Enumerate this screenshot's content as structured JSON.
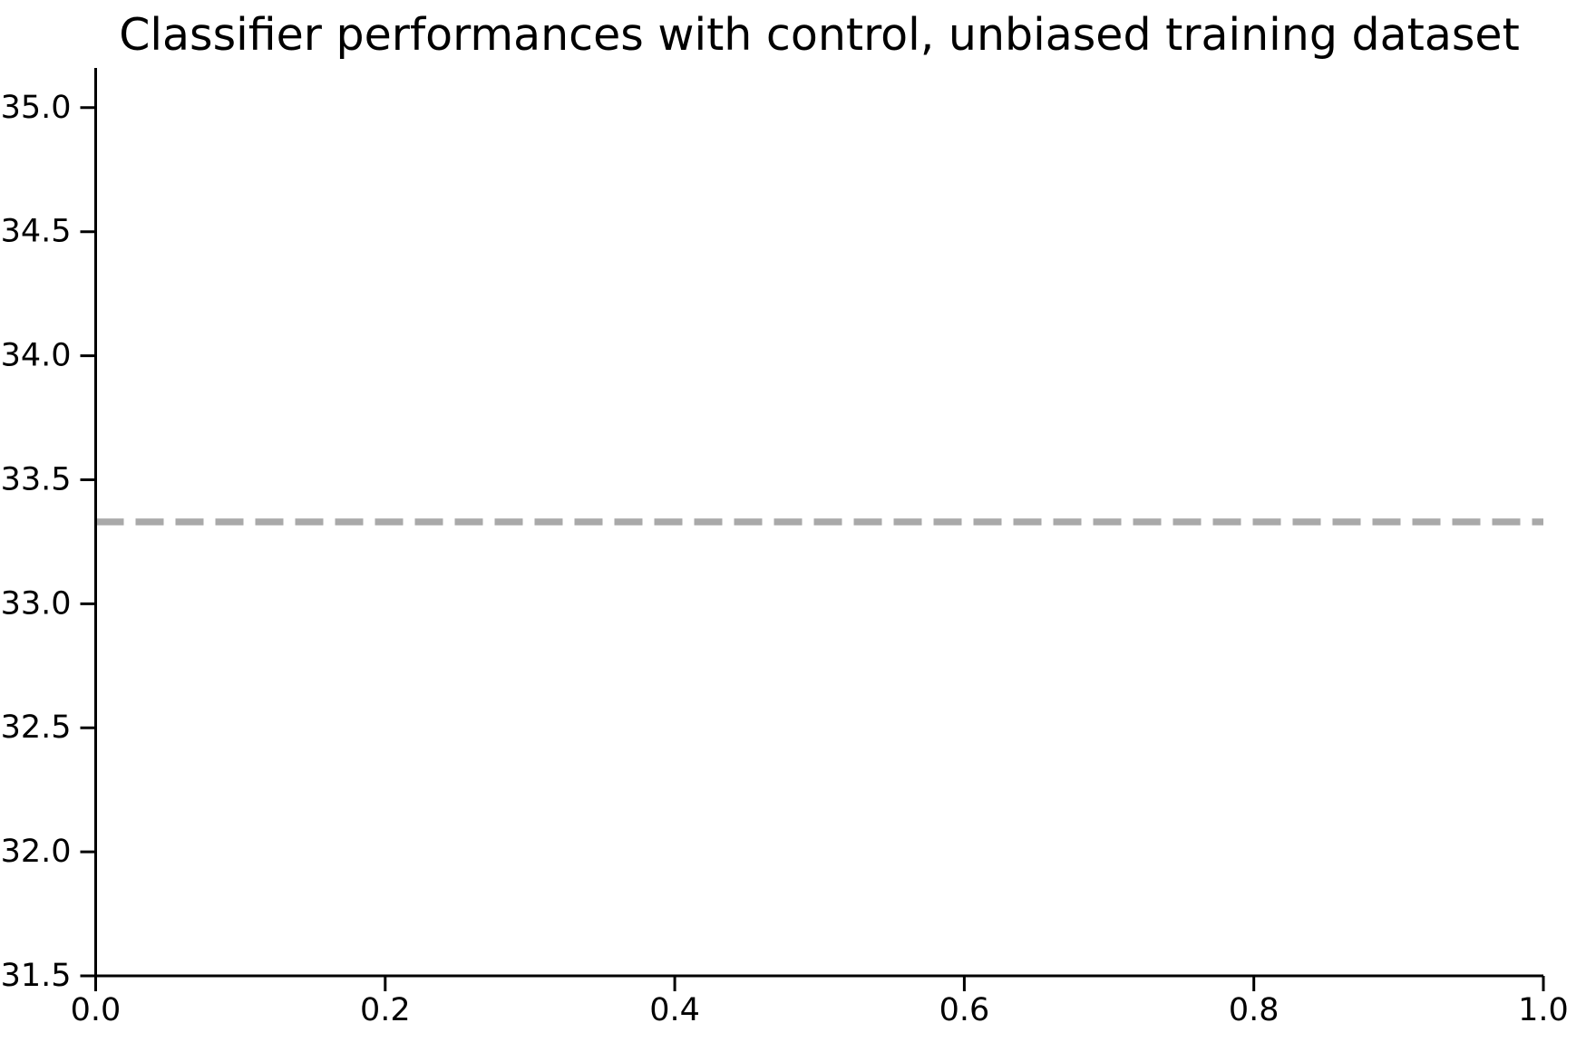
{
  "chart_data": {
    "type": "line",
    "title": "Classifier performances with control, unbiased training dataset",
    "xlabel": "",
    "ylabel": "",
    "xlim": [
      0.0,
      1.0
    ],
    "ylim": [
      31.5,
      35.16
    ],
    "x_ticks": [
      {
        "value": 0.0,
        "label": "0.0"
      },
      {
        "value": 0.2,
        "label": "0.2"
      },
      {
        "value": 0.4,
        "label": "0.4"
      },
      {
        "value": 0.6,
        "label": "0.6"
      },
      {
        "value": 0.8,
        "label": "0.8"
      },
      {
        "value": 1.0,
        "label": "1.0"
      }
    ],
    "y_ticks": [
      {
        "value": 31.5,
        "label": "31.5"
      },
      {
        "value": 32.0,
        "label": "32.0"
      },
      {
        "value": 32.5,
        "label": "32.5"
      },
      {
        "value": 33.0,
        "label": "33.0"
      },
      {
        "value": 33.5,
        "label": "33.5"
      },
      {
        "value": 34.0,
        "label": "34.0"
      },
      {
        "value": 34.5,
        "label": "34.5"
      },
      {
        "value": 35.0,
        "label": "35.0"
      }
    ],
    "grid": false,
    "legend": "none",
    "background_color": "#ffffff",
    "axis_color": "#000000",
    "series": [
      {
        "name": "horizontal-dashed-line",
        "kind": "hline",
        "y": 33.33,
        "x_start": 0.0,
        "x_end": 1.0,
        "color": "#a9a9a9",
        "linestyle": "dashed"
      }
    ]
  }
}
